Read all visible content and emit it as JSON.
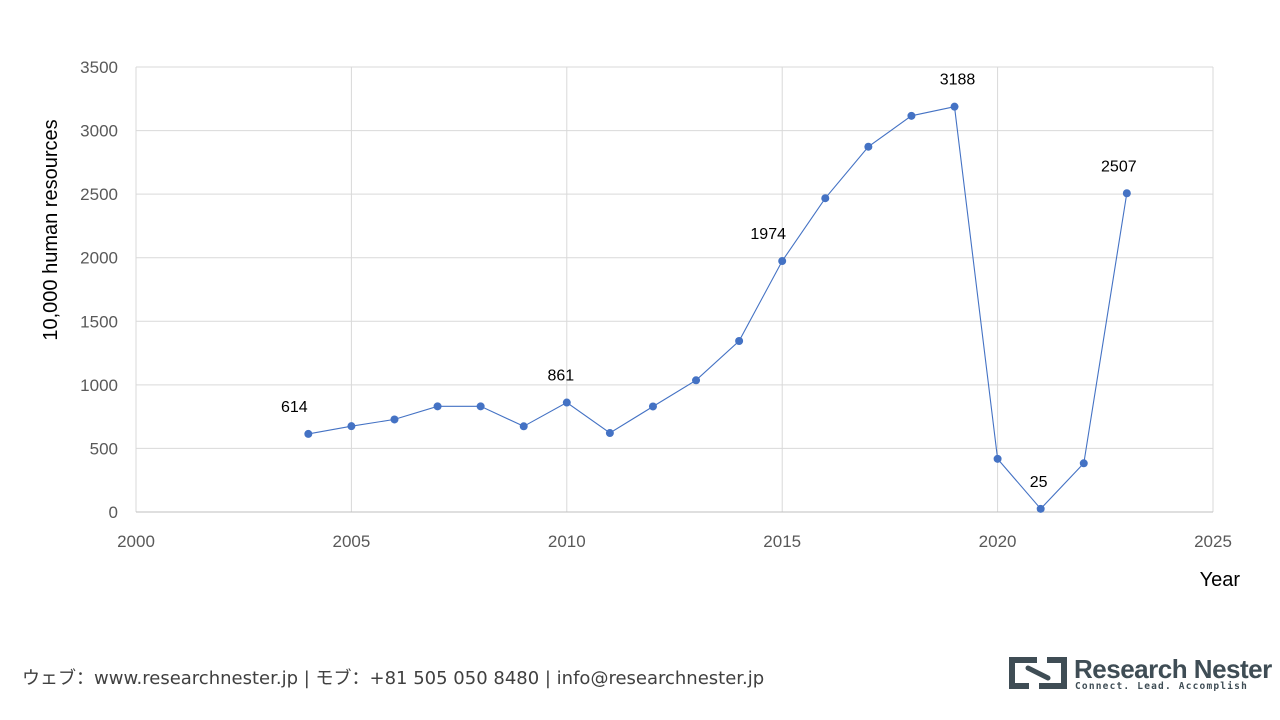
{
  "chart_data": {
    "type": "line",
    "xlabel": "Year",
    "ylabel": "10,000 human resources",
    "xlim": [
      2000,
      2025
    ],
    "ylim": [
      0,
      3500
    ],
    "x_ticks": [
      2000,
      2005,
      2010,
      2015,
      2020,
      2025
    ],
    "y_ticks": [
      0,
      500,
      1000,
      1500,
      2000,
      2500,
      3000,
      3500
    ],
    "grid": true,
    "legend": "none",
    "series": [
      {
        "color": "#4472c4",
        "points": [
          {
            "x": 2004,
            "y": 614,
            "label": "614"
          },
          {
            "x": 2005,
            "y": 675
          },
          {
            "x": 2006,
            "y": 728
          },
          {
            "x": 2007,
            "y": 831
          },
          {
            "x": 2008,
            "y": 831
          },
          {
            "x": 2009,
            "y": 674
          },
          {
            "x": 2010,
            "y": 861,
            "label": "861"
          },
          {
            "x": 2011,
            "y": 621
          },
          {
            "x": 2012,
            "y": 830
          },
          {
            "x": 2013,
            "y": 1036
          },
          {
            "x": 2014,
            "y": 1345
          },
          {
            "x": 2015,
            "y": 1974,
            "label": "1974"
          },
          {
            "x": 2016,
            "y": 2468
          },
          {
            "x": 2017,
            "y": 2873
          },
          {
            "x": 2018,
            "y": 3116
          },
          {
            "x": 2019,
            "y": 3188,
            "label": "3188"
          },
          {
            "x": 2020,
            "y": 418
          },
          {
            "x": 2021,
            "y": 25,
            "label": "25"
          },
          {
            "x": 2022,
            "y": 383
          },
          {
            "x": 2023,
            "y": 2507,
            "label": "2507"
          }
        ]
      }
    ]
  },
  "footer": {
    "contact": "ウェブ：www.researchnester.jp | モブ：+81 505 050 8480 | info@researchnester.jp"
  },
  "logo": {
    "name": "Research Nester",
    "tagline": "Connect. Lead. Accomplish",
    "icon": "research-nester-logo-mark",
    "color": "#3f4d55"
  }
}
